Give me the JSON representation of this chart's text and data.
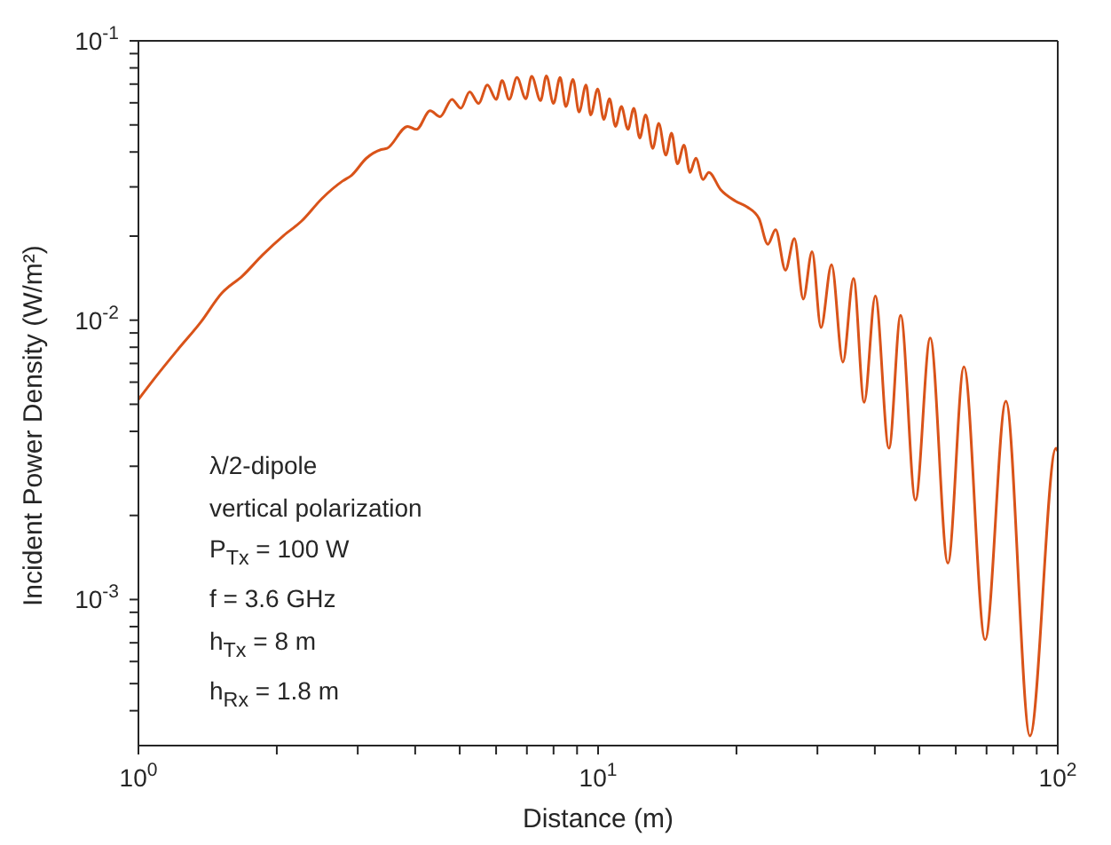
{
  "chart_data": {
    "type": "line",
    "xlabel": "Distance (m)",
    "ylabel": "Incident Power Density (W/m²)",
    "log": "xy",
    "xlim": [
      1,
      100
    ],
    "ylim": [
      0.0003,
      0.1
    ],
    "xticks": [
      {
        "value": 1,
        "label": "10$^{0}$"
      },
      {
        "value": 2,
        "label": null
      },
      {
        "value": 3,
        "label": null
      },
      {
        "value": 4,
        "label": null
      },
      {
        "value": 5,
        "label": null
      },
      {
        "value": 6,
        "label": null
      },
      {
        "value": 7,
        "label": null
      },
      {
        "value": 8,
        "label": null
      },
      {
        "value": 9,
        "label": null
      },
      {
        "value": 10,
        "label": "10$^{1}$"
      },
      {
        "value": 20,
        "label": null
      },
      {
        "value": 30,
        "label": null
      },
      {
        "value": 40,
        "label": null
      },
      {
        "value": 50,
        "label": null
      },
      {
        "value": 60,
        "label": null
      },
      {
        "value": 70,
        "label": null
      },
      {
        "value": 80,
        "label": null
      },
      {
        "value": 90,
        "label": null
      },
      {
        "value": 100,
        "label": "10$^{2}$"
      }
    ],
    "yticks": [
      {
        "value": 0.0004,
        "label": null
      },
      {
        "value": 0.0005,
        "label": null
      },
      {
        "value": 0.0006,
        "label": null
      },
      {
        "value": 0.0007,
        "label": null
      },
      {
        "value": 0.0008,
        "label": null
      },
      {
        "value": 0.0009,
        "label": null
      },
      {
        "value": 0.001,
        "label": "10$^{-3}$"
      },
      {
        "value": 0.002,
        "label": null
      },
      {
        "value": 0.003,
        "label": null
      },
      {
        "value": 0.004,
        "label": null
      },
      {
        "value": 0.005,
        "label": null
      },
      {
        "value": 0.006,
        "label": null
      },
      {
        "value": 0.007,
        "label": null
      },
      {
        "value": 0.008,
        "label": null
      },
      {
        "value": 0.009,
        "label": null
      },
      {
        "value": 0.01,
        "label": "10$^{-2}$"
      },
      {
        "value": 0.02,
        "label": null
      },
      {
        "value": 0.03,
        "label": null
      },
      {
        "value": 0.04,
        "label": null
      },
      {
        "value": 0.05,
        "label": null
      },
      {
        "value": 0.06,
        "label": null
      },
      {
        "value": 0.07,
        "label": null
      },
      {
        "value": 0.08,
        "label": null
      },
      {
        "value": 0.09,
        "label": null
      },
      {
        "value": 0.1,
        "label": "10$^{-1}$"
      }
    ],
    "grid": false,
    "legend": false,
    "marker": "none",
    "line_style": "solid",
    "annotations": [
      "λ/2-dipole",
      "vertical polarization",
      "P$_{Tx}$ = 100 W",
      "f = 3.6 GHz",
      "h$_{Tx}$ = 8 m",
      "h$_{Rx}$ = 1.8 m"
    ],
    "series": [
      {
        "color": "#d95319",
        "x": [
          1,
          1.08,
          1.216,
          1.368,
          1.518,
          1.684,
          1.861,
          2.07,
          2.262,
          2.51,
          2.782,
          2.908,
          3.133,
          3.373,
          3.473,
          3.853,
          4.027,
          4.312,
          4.532,
          4.809,
          5.027,
          5.255,
          5.495,
          5.743,
          6.003,
          6.182,
          6.406,
          6.66,
          6.962,
          7.169,
          7.495,
          7.718,
          7.998,
          8.266,
          8.51,
          8.818,
          9.089,
          9.415,
          9.634,
          9.98,
          10.29,
          10.59,
          10.91,
          11.24,
          11.61,
          11.96,
          12.32,
          12.69,
          13.15,
          13.55,
          14.04,
          14.45,
          14.88,
          15.38,
          15.84,
          16.32,
          16.91,
          17.41,
          18.48,
          19.89,
          21.11,
          22.39,
          23.4,
          24.33,
          25.56,
          26.73,
          27.95,
          29.21,
          30.54,
          32.2,
          34.09,
          35.95,
          37.92,
          40.1,
          42.93,
          45.52,
          49.03,
          52.79,
          57.68,
          62.5,
          69.51,
          77.12,
          87,
          99.1,
          100
        ],
        "values": [
          0.0052,
          0.00614,
          0.00782,
          0.00986,
          0.0125,
          0.0144,
          0.0171,
          0.0201,
          0.0226,
          0.0273,
          0.0315,
          0.033,
          0.038,
          0.0408,
          0.0412,
          0.0494,
          0.0482,
          0.0562,
          0.0535,
          0.0617,
          0.0574,
          0.0657,
          0.0597,
          0.0695,
          0.0617,
          0.0721,
          0.0617,
          0.0739,
          0.062,
          0.0746,
          0.0611,
          0.0749,
          0.0597,
          0.0739,
          0.0582,
          0.0728,
          0.0556,
          0.0695,
          0.0543,
          0.0672,
          0.0523,
          0.062,
          0.0494,
          0.0582,
          0.0482,
          0.0574,
          0.0449,
          0.0543,
          0.0412,
          0.0506,
          0.039,
          0.0467,
          0.0363,
          0.0423,
          0.0338,
          0.038,
          0.0319,
          0.0338,
          0.0293,
          0.0267,
          0.0254,
          0.0231,
          0.0187,
          0.0211,
          0.0151,
          0.0196,
          0.0119,
          0.0176,
          0.00941,
          0.0158,
          0.00708,
          0.0141,
          0.00508,
          0.0122,
          0.00348,
          0.0104,
          0.00227,
          0.00864,
          0.00135,
          0.00681,
          0.000718,
          0.00513,
          0.000325,
          0.00348,
          0.0034
        ]
      }
    ]
  }
}
